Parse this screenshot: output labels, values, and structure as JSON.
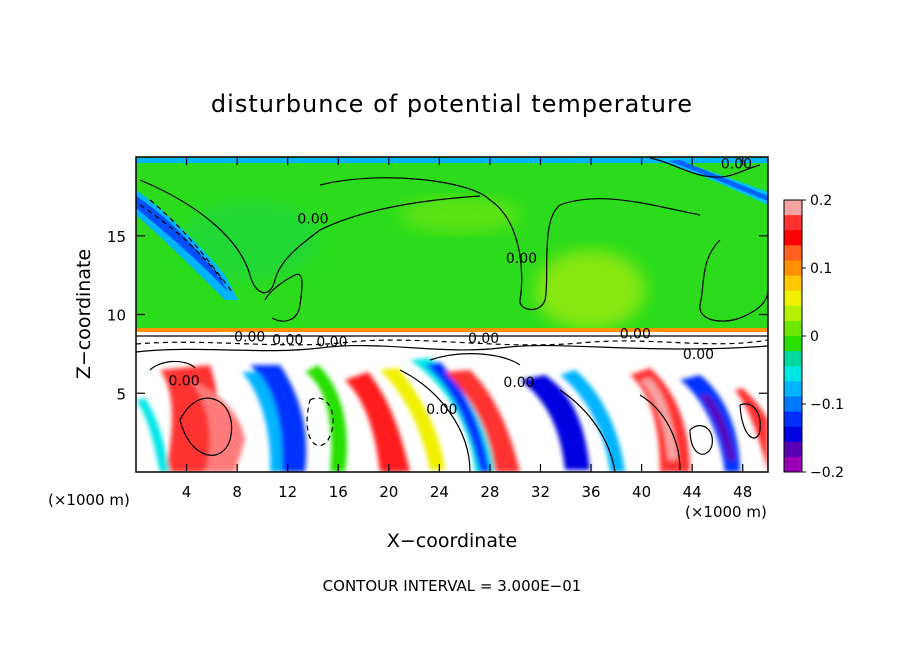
{
  "chart_data": {
    "type": "heatmap",
    "title": "disturbunce of potential temperature",
    "xlabel": "X−coordinate",
    "ylabel": "Z−coordinate",
    "x_unit_left": "(×1000 m)",
    "x_unit_right": "(×1000 m)",
    "footer": "CONTOUR INTERVAL = 3.000E−01",
    "xlim": [
      0,
      50
    ],
    "ylim": [
      0,
      20
    ],
    "x_ticks": [
      4,
      8,
      12,
      16,
      20,
      24,
      28,
      32,
      36,
      40,
      44,
      48
    ],
    "y_ticks": [
      5,
      10,
      15
    ],
    "contour_labels": [
      {
        "text": "0.00",
        "x": 14,
        "y": 16.1
      },
      {
        "text": "0.00",
        "x": 30.5,
        "y": 13.6
      },
      {
        "text": "0.00",
        "x": 47.5,
        "y": 19.6
      },
      {
        "text": "0.00",
        "x": 9,
        "y": 8.6
      },
      {
        "text": "0.00",
        "x": 12,
        "y": 8.4
      },
      {
        "text": "0.00",
        "x": 15.5,
        "y": 8.3
      },
      {
        "text": "0.00",
        "x": 27.5,
        "y": 8.5
      },
      {
        "text": "0.00",
        "x": 39.5,
        "y": 8.8
      },
      {
        "text": "0.00",
        "x": 44.5,
        "y": 7.5
      },
      {
        "text": "0.00",
        "x": 3.8,
        "y": 5.8
      },
      {
        "text": "0.00",
        "x": 30.3,
        "y": 5.7
      },
      {
        "text": "0.00",
        "x": 24.2,
        "y": 4.0
      }
    ],
    "colorbar": {
      "min": -0.2,
      "max": 0.2,
      "ticks": [
        "0.2",
        "0.1",
        "0",
        "−0.1",
        "−0.2"
      ],
      "colors": [
        "#f5a3a3",
        "#ff3030",
        "#ff0000",
        "#ff6020",
        "#ff9000",
        "#ffc800",
        "#f0f000",
        "#b4f000",
        "#6ee800",
        "#28e000",
        "#00d8a0",
        "#00e6e6",
        "#00b4ff",
        "#0078ff",
        "#0030ff",
        "#0000e0",
        "#5a00b4",
        "#9a00b4"
      ]
    }
  }
}
